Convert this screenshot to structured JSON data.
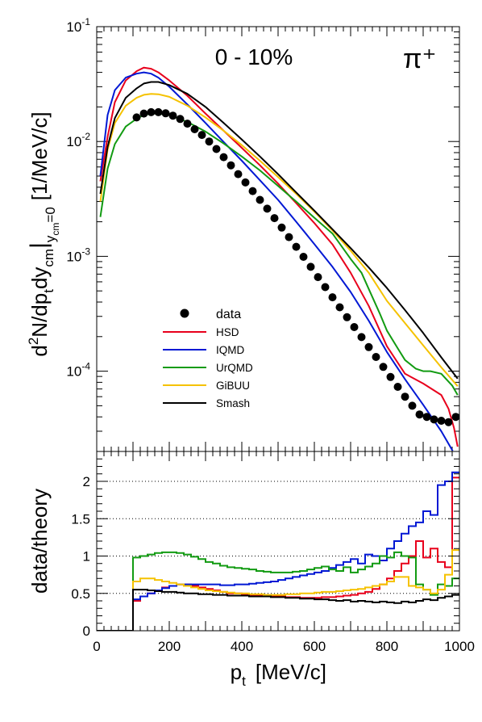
{
  "chart_data": [
    {
      "type": "line",
      "panel": "top",
      "title": "",
      "annotations": [
        "0 - 10%",
        "π⁺"
      ],
      "xlabel": "",
      "ylabel": "d²N/dp_t dy_cm|y_cm=0 [1/MeV/c]",
      "ylabel_parts": {
        "d": "d",
        "sup2": "2",
        "N": "N/dp",
        "t": "t",
        "dy": "dy",
        "cm": "cm",
        "bar": "|",
        "y": "y",
        "cm2": "cm",
        "eq0": "=0",
        "unit": "[1/MeV/c]"
      },
      "xlim": [
        0,
        1000
      ],
      "ylim": [
        2e-05,
        0.1
      ],
      "yscale": "log",
      "yticks": [
        {
          "mant": "10",
          "exp": "-1"
        },
        {
          "mant": "10",
          "exp": "-2"
        },
        {
          "mant": "10",
          "exp": "-3"
        },
        {
          "mant": "10",
          "exp": "-4"
        }
      ],
      "legend_position": "center-left",
      "series": [
        {
          "name": "data",
          "style": "markers",
          "color": "#000000",
          "x": [
            110,
            130,
            150,
            170,
            190,
            210,
            230,
            250,
            270,
            290,
            310,
            330,
            350,
            370,
            390,
            410,
            430,
            450,
            470,
            490,
            510,
            530,
            550,
            570,
            590,
            610,
            630,
            650,
            670,
            690,
            710,
            730,
            750,
            770,
            790,
            810,
            830,
            850,
            870,
            890,
            910,
            930,
            950,
            970,
            990
          ],
          "y": [
            0.0162,
            0.0175,
            0.018,
            0.018,
            0.0176,
            0.0168,
            0.0157,
            0.0143,
            0.0128,
            0.0114,
            0.01,
            0.0086,
            0.0073,
            0.0062,
            0.0052,
            0.0044,
            0.0037,
            0.0031,
            0.0026,
            0.00215,
            0.00178,
            0.00147,
            0.00121,
            0.00099,
            0.00081,
            0.00066,
            0.00054,
            0.00044,
            0.00036,
            0.000295,
            0.000242,
            0.000198,
            0.000162,
            0.000133,
            0.000109,
            8.9e-05,
            7.3e-05,
            6e-05,
            5e-05,
            4.2e-05,
            4e-05,
            3.8e-05,
            3.7e-05,
            3.6e-05,
            4e-05
          ]
        },
        {
          "name": "HSD",
          "style": "line",
          "color": "#e8001c",
          "x": [
            10,
            30,
            50,
            80,
            110,
            130,
            150,
            170,
            200,
            250,
            300,
            350,
            400,
            450,
            500,
            550,
            600,
            650,
            700,
            750,
            800,
            850,
            900,
            950,
            970,
            985,
            995
          ],
          "y": [
            0.0045,
            0.011,
            0.022,
            0.034,
            0.041,
            0.044,
            0.043,
            0.04,
            0.034,
            0.025,
            0.0175,
            0.0124,
            0.0088,
            0.0062,
            0.0043,
            0.0029,
            0.00195,
            0.00127,
            0.00072,
            0.00037,
            0.000165,
            9.5e-05,
            7.8e-05,
            6.2e-05,
            4.7e-05,
            3.2e-05,
            2.2e-05
          ]
        },
        {
          "name": "IQMD",
          "style": "line",
          "color": "#0018d4",
          "x": [
            10,
            30,
            50,
            80,
            110,
            130,
            150,
            170,
            200,
            250,
            300,
            350,
            400,
            450,
            500,
            550,
            600,
            650,
            700,
            750,
            800,
            850,
            900,
            950,
            995
          ],
          "y": [
            0.005,
            0.017,
            0.028,
            0.036,
            0.039,
            0.04,
            0.039,
            0.036,
            0.03,
            0.021,
            0.0145,
            0.0099,
            0.0068,
            0.0046,
            0.0031,
            0.002,
            0.00128,
            0.00081,
            0.00049,
            0.000275,
            0.000147,
            8.5e-05,
            5.1e-05,
            3e-05,
            1.7e-05
          ]
        },
        {
          "name": "UrQMD",
          "style": "line",
          "color": "#129b12",
          "x": [
            10,
            30,
            50,
            80,
            110,
            130,
            150,
            170,
            200,
            250,
            300,
            350,
            400,
            450,
            500,
            550,
            600,
            650,
            700,
            730,
            750,
            780,
            800,
            830,
            850,
            880,
            900,
            920,
            950,
            980,
            995
          ],
          "y": [
            0.0022,
            0.0058,
            0.0095,
            0.0135,
            0.0158,
            0.017,
            0.0175,
            0.0175,
            0.017,
            0.0148,
            0.0122,
            0.0096,
            0.0074,
            0.0056,
            0.0041,
            0.003,
            0.00217,
            0.00158,
            0.00095,
            0.00072,
            0.00052,
            0.00032,
            0.000226,
            0.000158,
            0.000125,
            0.000105,
            0.0001,
            0.0001,
            9.5e-05,
            7.5e-05,
            6.2e-05
          ]
        },
        {
          "name": "GiBUU",
          "style": "line",
          "color": "#f5c200",
          "x": [
            10,
            30,
            50,
            80,
            110,
            130,
            150,
            170,
            200,
            250,
            300,
            350,
            400,
            450,
            500,
            550,
            600,
            650,
            700,
            750,
            800,
            850,
            900,
            950,
            995
          ],
          "y": [
            0.003,
            0.0085,
            0.0145,
            0.0205,
            0.024,
            0.0255,
            0.026,
            0.0258,
            0.0245,
            0.0205,
            0.0162,
            0.0124,
            0.0093,
            0.0068,
            0.0049,
            0.0035,
            0.00245,
            0.00168,
            0.00112,
            0.00072,
            0.00041,
            0.000262,
            0.000168,
            0.000108,
            7.4e-05
          ]
        },
        {
          "name": "Smash",
          "style": "line",
          "color": "#000000",
          "x": [
            10,
            30,
            50,
            80,
            110,
            130,
            150,
            170,
            200,
            250,
            300,
            350,
            400,
            450,
            500,
            550,
            600,
            650,
            700,
            750,
            800,
            850,
            900,
            950,
            995
          ],
          "y": [
            0.0035,
            0.009,
            0.016,
            0.024,
            0.029,
            0.032,
            0.033,
            0.033,
            0.031,
            0.026,
            0.02,
            0.0145,
            0.0104,
            0.0074,
            0.0052,
            0.0036,
            0.0025,
            0.00172,
            0.00118,
            0.0008,
            0.00053,
            0.00034,
            0.000215,
            0.000132,
            8.6e-05
          ]
        }
      ]
    },
    {
      "type": "step",
      "panel": "bottom",
      "title": "",
      "xlabel": "p_t [MeV/c]",
      "xlabel_parts": {
        "p": "p",
        "t": "t",
        "unit": "[MeV/c]"
      },
      "ylabel": "data/theory",
      "xlim": [
        0,
        1000
      ],
      "ylim": [
        0,
        2.4
      ],
      "xticks": [
        0,
        200,
        400,
        600,
        800,
        1000
      ],
      "yticks": [
        0,
        0.5,
        1,
        1.5,
        2
      ],
      "ytick_labels": [
        "0",
        "0.5",
        "1",
        "1.5",
        "2"
      ],
      "reference_lines": [
        0.5,
        1,
        1.5,
        2
      ],
      "bin_width": 20,
      "series": [
        {
          "name": "HSD",
          "color": "#e8001c",
          "values": [
            0,
            0,
            0,
            0,
            0,
            0.4,
            0.46,
            0.5,
            0.54,
            0.58,
            0.6,
            0.62,
            0.62,
            0.6,
            0.58,
            0.56,
            0.54,
            0.52,
            0.5,
            0.5,
            0.49,
            0.48,
            0.47,
            0.47,
            0.46,
            0.46,
            0.45,
            0.45,
            0.44,
            0.44,
            0.44,
            0.45,
            0.45,
            0.46,
            0.47,
            0.48,
            0.5,
            0.52,
            0.56,
            0.62,
            0.7,
            0.8,
            0.9,
            1.0,
            1.2,
            0.98,
            1.1,
            0.92,
            0.85,
            2.05
          ]
        },
        {
          "name": "IQMD",
          "color": "#0018d4",
          "values": [
            0,
            0,
            0,
            0,
            0,
            0.42,
            0.46,
            0.5,
            0.54,
            0.57,
            0.6,
            0.62,
            0.62,
            0.62,
            0.62,
            0.62,
            0.62,
            0.61,
            0.61,
            0.62,
            0.62,
            0.63,
            0.64,
            0.65,
            0.66,
            0.68,
            0.7,
            0.72,
            0.74,
            0.76,
            0.78,
            0.8,
            0.84,
            0.88,
            0.92,
            0.96,
            0.9,
            1.02,
            1.0,
            0.94,
            1.1,
            1.2,
            1.3,
            1.4,
            1.45,
            1.6,
            1.55,
            1.95,
            2.0,
            2.12
          ]
        },
        {
          "name": "UrQMD",
          "color": "#129b12",
          "values": [
            0,
            0,
            0,
            0,
            0,
            0.98,
            1.0,
            1.02,
            1.04,
            1.05,
            1.05,
            1.04,
            1.02,
            0.99,
            0.96,
            0.92,
            0.9,
            0.87,
            0.85,
            0.84,
            0.83,
            0.82,
            0.8,
            0.79,
            0.78,
            0.78,
            0.78,
            0.79,
            0.8,
            0.82,
            0.84,
            0.86,
            0.82,
            0.8,
            0.85,
            0.78,
            0.82,
            0.86,
            0.9,
            1.0,
            0.98,
            1.05,
            1.0,
            0.98,
            0.62,
            0.55,
            0.48,
            0.62,
            0.6,
            0.7
          ]
        },
        {
          "name": "GiBUU",
          "color": "#f5c200",
          "values": [
            0,
            0,
            0,
            0,
            0,
            0.66,
            0.7,
            0.7,
            0.68,
            0.66,
            0.64,
            0.62,
            0.6,
            0.58,
            0.56,
            0.54,
            0.53,
            0.52,
            0.51,
            0.5,
            0.5,
            0.49,
            0.49,
            0.48,
            0.48,
            0.48,
            0.49,
            0.49,
            0.5,
            0.5,
            0.51,
            0.52,
            0.52,
            0.53,
            0.54,
            0.55,
            0.56,
            0.58,
            0.6,
            0.62,
            0.66,
            0.72,
            0.72,
            0.6,
            0.58,
            0.55,
            0.5,
            0.55,
            0.75,
            1.08
          ]
        },
        {
          "name": "Smash",
          "color": "#000000",
          "values": [
            0,
            0,
            0,
            0,
            0,
            0.55,
            0.55,
            0.54,
            0.53,
            0.52,
            0.52,
            0.51,
            0.5,
            0.5,
            0.49,
            0.49,
            0.48,
            0.48,
            0.47,
            0.47,
            0.47,
            0.46,
            0.46,
            0.46,
            0.45,
            0.45,
            0.44,
            0.44,
            0.43,
            0.43,
            0.42,
            0.42,
            0.41,
            0.4,
            0.41,
            0.39,
            0.4,
            0.39,
            0.38,
            0.39,
            0.38,
            0.37,
            0.39,
            0.38,
            0.4,
            0.42,
            0.41,
            0.44,
            0.46,
            0.48
          ]
        }
      ]
    }
  ]
}
